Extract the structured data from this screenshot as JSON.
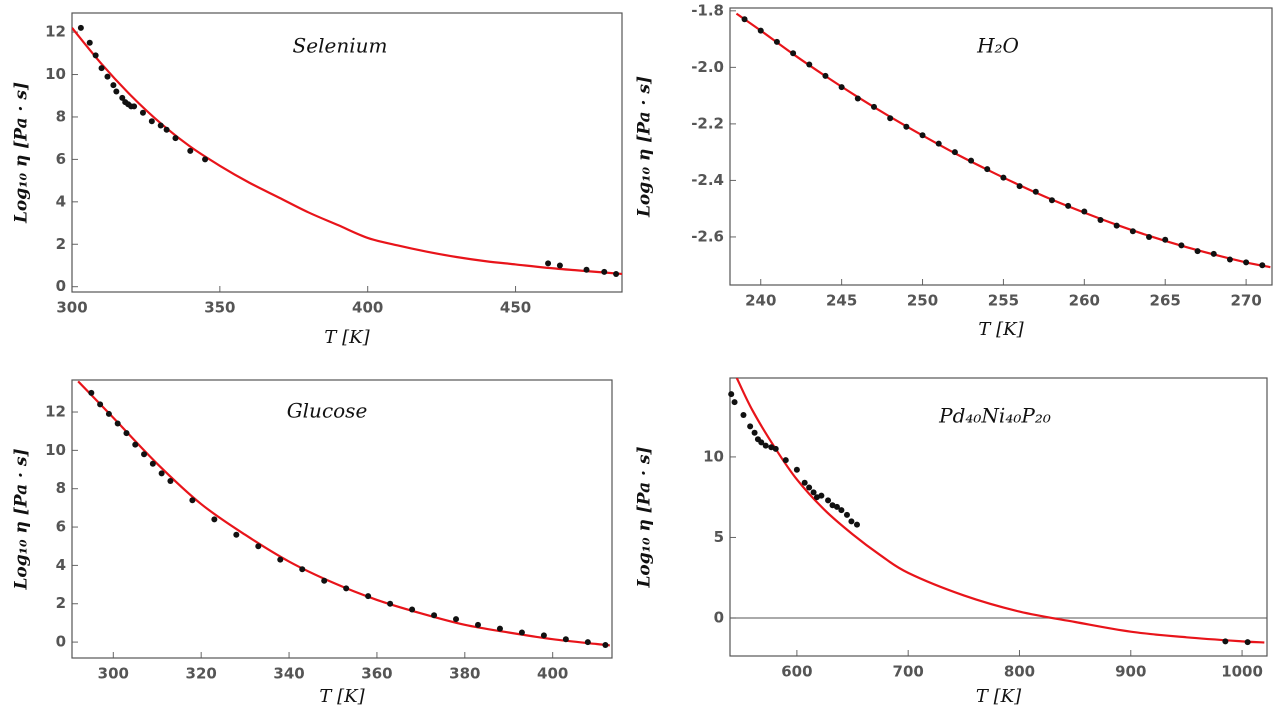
{
  "chart_data": [
    {
      "type": "scatter",
      "title": "Selenium",
      "xlabel": "T [K]",
      "ylabel": "Log₁₀ η [Pa · s]",
      "xlim": [
        300,
        486
      ],
      "ylim": [
        -0.25,
        12.9
      ],
      "xticks": [
        300,
        350,
        400,
        450
      ],
      "yticks": [
        0,
        2,
        4,
        6,
        8,
        10,
        12
      ],
      "points": {
        "color": "#111111",
        "x": [
          303,
          306,
          308,
          310,
          312,
          314,
          315,
          317,
          318,
          319,
          320,
          321,
          324,
          327,
          330,
          332,
          335,
          340,
          345,
          461,
          465,
          474,
          480,
          484
        ],
        "values": [
          12.2,
          11.5,
          10.9,
          10.3,
          9.9,
          9.5,
          9.2,
          8.9,
          8.7,
          8.6,
          8.5,
          8.5,
          8.2,
          7.8,
          7.6,
          7.4,
          7.0,
          6.4,
          6.0,
          1.1,
          1.0,
          0.8,
          0.7,
          0.6
        ]
      },
      "fit": {
        "color": "#e8141a",
        "x": [
          300,
          310,
          320,
          330,
          340,
          350,
          360,
          370,
          380,
          390,
          400,
          410,
          420,
          430,
          440,
          450,
          460,
          470,
          480,
          486
        ],
        "values": [
          12.2,
          10.5,
          9.0,
          7.7,
          6.6,
          5.7,
          4.9,
          4.2,
          3.5,
          2.9,
          2.3,
          1.95,
          1.65,
          1.4,
          1.2,
          1.05,
          0.9,
          0.78,
          0.67,
          0.6
        ]
      }
    },
    {
      "type": "scatter",
      "title": "H₂O",
      "xlabel": "T [K]",
      "ylabel": "Log₁₀ η [Pa · s]",
      "xlim": [
        238.1,
        271.6
      ],
      "ylim": [
        -2.77,
        -1.79
      ],
      "xticks": [
        240,
        245,
        250,
        255,
        260,
        265,
        270
      ],
      "yticks": [
        -1.8,
        {
          "value": -2,
          "label": "-2.0"
        },
        -2.2,
        -2.4,
        -2.6
      ],
      "points": {
        "color": "#111111",
        "x": [
          239,
          240,
          241,
          242,
          243,
          244,
          245,
          246,
          247,
          248,
          249,
          250,
          251,
          252,
          253,
          254,
          255,
          256,
          257,
          258,
          259,
          260,
          261,
          262,
          263,
          264,
          265,
          266,
          267,
          268,
          269,
          270,
          271
        ],
        "values": [
          -1.83,
          -1.87,
          -1.91,
          -1.95,
          -1.99,
          -2.03,
          -2.07,
          -2.11,
          -2.14,
          -2.18,
          -2.21,
          -2.24,
          -2.27,
          -2.3,
          -2.33,
          -2.36,
          -2.39,
          -2.42,
          -2.44,
          -2.47,
          -2.49,
          -2.51,
          -2.54,
          -2.56,
          -2.58,
          -2.6,
          -2.61,
          -2.63,
          -2.65,
          -2.66,
          -2.68,
          -2.69,
          -2.7
        ]
      },
      "fit": {
        "color": "#e8141a",
        "x": [
          238.5,
          240,
          242,
          244,
          246,
          248,
          250,
          252,
          254,
          256,
          258,
          260,
          262,
          264,
          266,
          268,
          270,
          271.5
        ],
        "values": [
          -1.81,
          -1.87,
          -1.953,
          -2.031,
          -2.105,
          -2.175,
          -2.241,
          -2.304,
          -2.362,
          -2.417,
          -2.468,
          -2.514,
          -2.557,
          -2.596,
          -2.631,
          -2.662,
          -2.69,
          -2.707
        ]
      }
    },
    {
      "type": "scatter",
      "title": "Glucose",
      "xlabel": "T [K]",
      "ylabel": "Log₁₀ η [Pa · s]",
      "xlim": [
        290.6,
        413.5
      ],
      "ylim": [
        -0.83,
        13.67
      ],
      "xticks": [
        300,
        320,
        340,
        360,
        380,
        400
      ],
      "yticks": [
        0,
        2,
        4,
        6,
        8,
        10,
        12
      ],
      "points": {
        "color": "#111111",
        "x": [
          295,
          297,
          299,
          301,
          303,
          305,
          307,
          309,
          311,
          313,
          318,
          323,
          328,
          333,
          338,
          343,
          348,
          353,
          358,
          363,
          368,
          373,
          378,
          383,
          388,
          393,
          398,
          403,
          408,
          412
        ],
        "values": [
          13.0,
          12.4,
          11.9,
          11.4,
          10.9,
          10.3,
          9.8,
          9.3,
          8.8,
          8.4,
          7.4,
          6.4,
          5.6,
          5.0,
          4.3,
          3.8,
          3.2,
          2.8,
          2.4,
          2.0,
          1.7,
          1.4,
          1.2,
          0.9,
          0.7,
          0.5,
          0.35,
          0.15,
          0.0,
          -0.15
        ]
      },
      "fit": {
        "color": "#e8141a",
        "x": [
          292,
          300,
          310,
          320,
          330,
          340,
          350,
          360,
          370,
          380,
          390,
          400,
          410,
          413
        ],
        "values": [
          13.6,
          11.7,
          9.3,
          7.2,
          5.6,
          4.2,
          3.1,
          2.2,
          1.5,
          0.9,
          0.5,
          0.15,
          -0.1,
          -0.17
        ]
      }
    },
    {
      "type": "scatter",
      "title": "Pd₄₀Ni₄₀P₂₀",
      "xlabel": "T [K]",
      "ylabel": "Log₁₀ η [Pa · s]",
      "xlim": [
        539.9,
        1022.4
      ],
      "ylim": [
        -2.36,
        14.9
      ],
      "xticks": [
        600,
        700,
        800,
        900,
        1000
      ],
      "yticks": [
        0,
        5,
        10
      ],
      "zero_line": true,
      "points": {
        "color": "#111111",
        "x": [
          541,
          544,
          552,
          558,
          562,
          565,
          568,
          572,
          577,
          581,
          590,
          600,
          607,
          611,
          615,
          618,
          622,
          628,
          632,
          636,
          640,
          645,
          649,
          654,
          985,
          1005
        ],
        "values": [
          13.9,
          13.4,
          12.6,
          11.9,
          11.5,
          11.1,
          10.9,
          10.7,
          10.6,
          10.5,
          9.8,
          9.2,
          8.4,
          8.1,
          7.8,
          7.5,
          7.6,
          7.3,
          7.0,
          6.9,
          6.7,
          6.4,
          6.0,
          5.8,
          -1.45,
          -1.5
        ]
      },
      "fit": {
        "color": "#e8141a",
        "x": [
          546,
          560,
          580,
          600,
          625,
          650,
          675,
          700,
          750,
          800,
          850,
          900,
          950,
          1000,
          1020
        ],
        "values": [
          14.9,
          12.9,
          10.6,
          8.6,
          6.7,
          5.2,
          3.9,
          2.8,
          1.4,
          0.4,
          -0.25,
          -0.85,
          -1.2,
          -1.45,
          -1.52
        ]
      }
    }
  ]
}
